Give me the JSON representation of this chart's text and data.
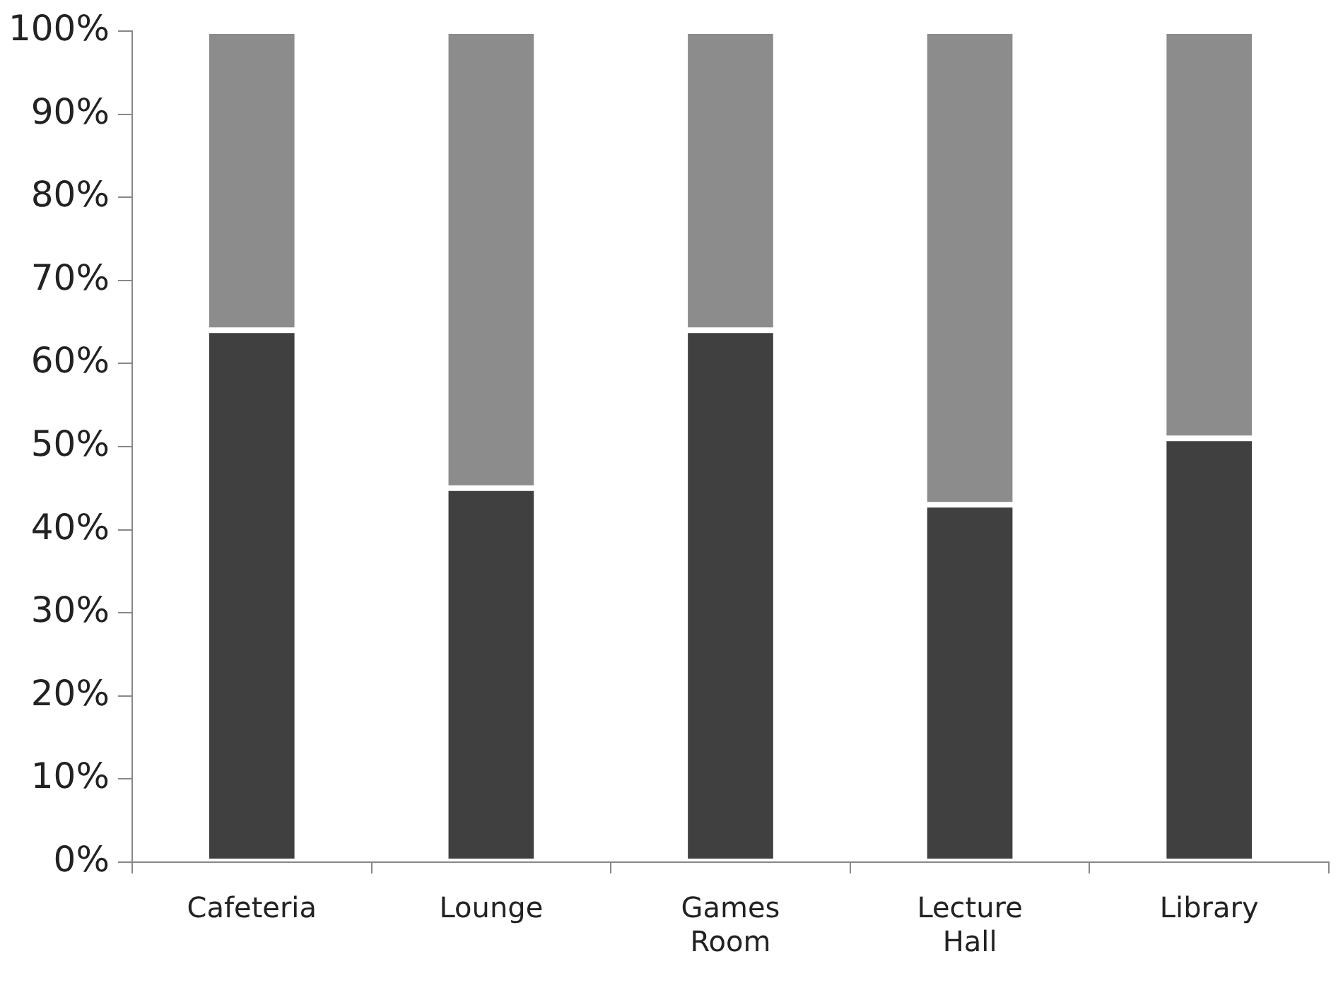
{
  "chart_data": {
    "type": "bar",
    "stacked": true,
    "categories": [
      "Cafeteria",
      "Lounge",
      "Games Room",
      "Lecture Hall",
      "Library"
    ],
    "series": [
      {
        "color": "#404040",
        "values": [
          64,
          45,
          64,
          43,
          51
        ]
      },
      {
        "color": "#8c8c8c",
        "values": [
          36,
          55,
          36,
          57,
          49
        ]
      }
    ],
    "ylim": [
      0,
      100
    ],
    "yticks": [
      {
        "value": 0,
        "label": "0%"
      },
      {
        "value": 10,
        "label": "10%"
      },
      {
        "value": 20,
        "label": "20%"
      },
      {
        "value": 30,
        "label": "30%"
      },
      {
        "value": 40,
        "label": "40%"
      },
      {
        "value": 50,
        "label": "50%"
      },
      {
        "value": 60,
        "label": "60%"
      },
      {
        "value": 70,
        "label": "70%"
      },
      {
        "value": 80,
        "label": "80%"
      },
      {
        "value": 90,
        "label": "90%"
      },
      {
        "value": 100,
        "label": "100%"
      }
    ],
    "grid": false,
    "legend": false
  }
}
